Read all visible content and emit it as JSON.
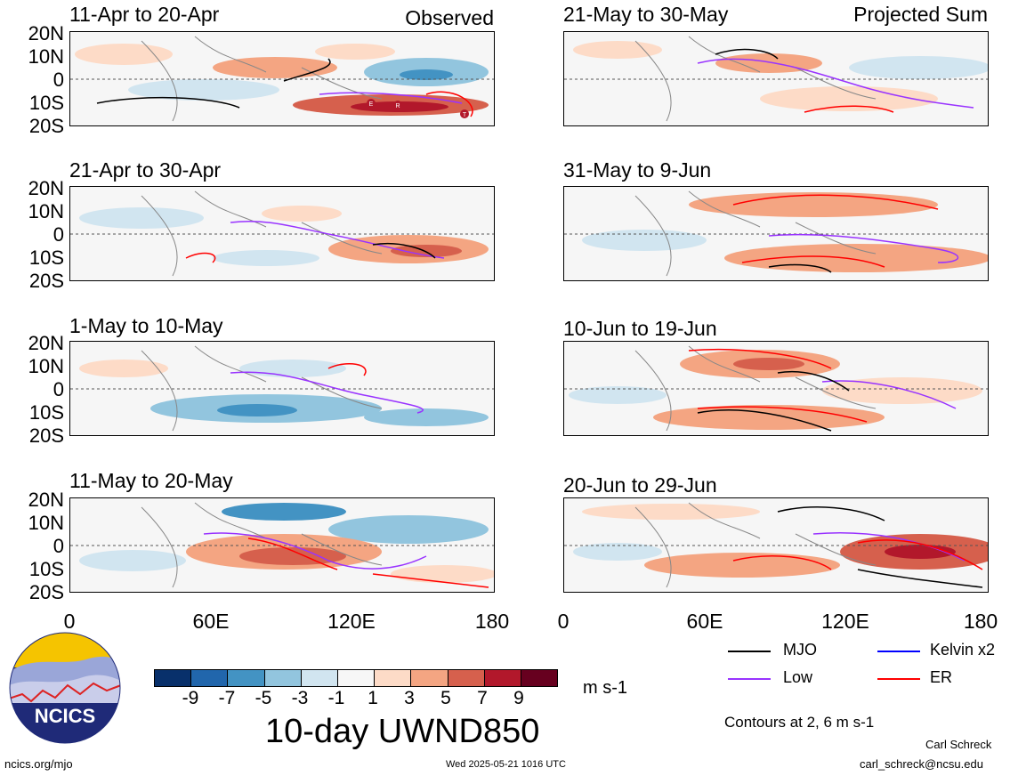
{
  "panels": [
    {
      "id": "p1",
      "title": "11-Apr to 20-Apr",
      "corner": "Observed",
      "col": "left"
    },
    {
      "id": "p2",
      "title": "21-Apr to 30-Apr",
      "corner": "",
      "col": "left"
    },
    {
      "id": "p3",
      "title": "1-May to 10-May",
      "corner": "",
      "col": "left"
    },
    {
      "id": "p4",
      "title": "11-May to 20-May",
      "corner": "",
      "col": "left"
    },
    {
      "id": "p5",
      "title": "21-May to 30-May",
      "corner": "Projected Sum",
      "col": "right"
    },
    {
      "id": "p6",
      "title": "31-May to 9-Jun",
      "corner": "",
      "col": "right"
    },
    {
      "id": "p7",
      "title": "10-Jun to 19-Jun",
      "corner": "",
      "col": "right"
    },
    {
      "id": "p8",
      "title": "20-Jun to 29-Jun",
      "corner": "",
      "col": "right"
    }
  ],
  "lat_labels": [
    "20N",
    "10N",
    "0",
    "10S",
    "20S"
  ],
  "lon_labels": [
    "0",
    "60E",
    "120E",
    "180"
  ],
  "colorbar": {
    "colors": [
      "#08306b",
      "#2166ac",
      "#4393c3",
      "#92c5de",
      "#d1e5f0",
      "#f7f7f7",
      "#fddbc7",
      "#f4a582",
      "#d6604d",
      "#b2182b",
      "#67001f"
    ],
    "ticks": [
      "-9",
      "-7",
      "-5",
      "-3",
      "-1",
      "1",
      "3",
      "5",
      "7",
      "9"
    ],
    "units": "m s-1"
  },
  "legend": [
    {
      "label": "MJO",
      "color": "#000000"
    },
    {
      "label": "Kelvin x2",
      "color": "#0000ff"
    },
    {
      "label": "Low",
      "color": "#9933ff"
    },
    {
      "label": "ER",
      "color": "#ff0000"
    }
  ],
  "figure_title": "10-day UWND850",
  "contours_note": "Contours at 2, 6 m s-1",
  "logo_text": "NCICS",
  "footer": {
    "url": "ncics.org/mjo",
    "timestamp": "Wed 2025-05-21 1016 UTC",
    "author": "Carl Schreck",
    "email": "carl_schreck@ncsu.edu"
  },
  "markers": [
    "E",
    "R",
    "T"
  ]
}
